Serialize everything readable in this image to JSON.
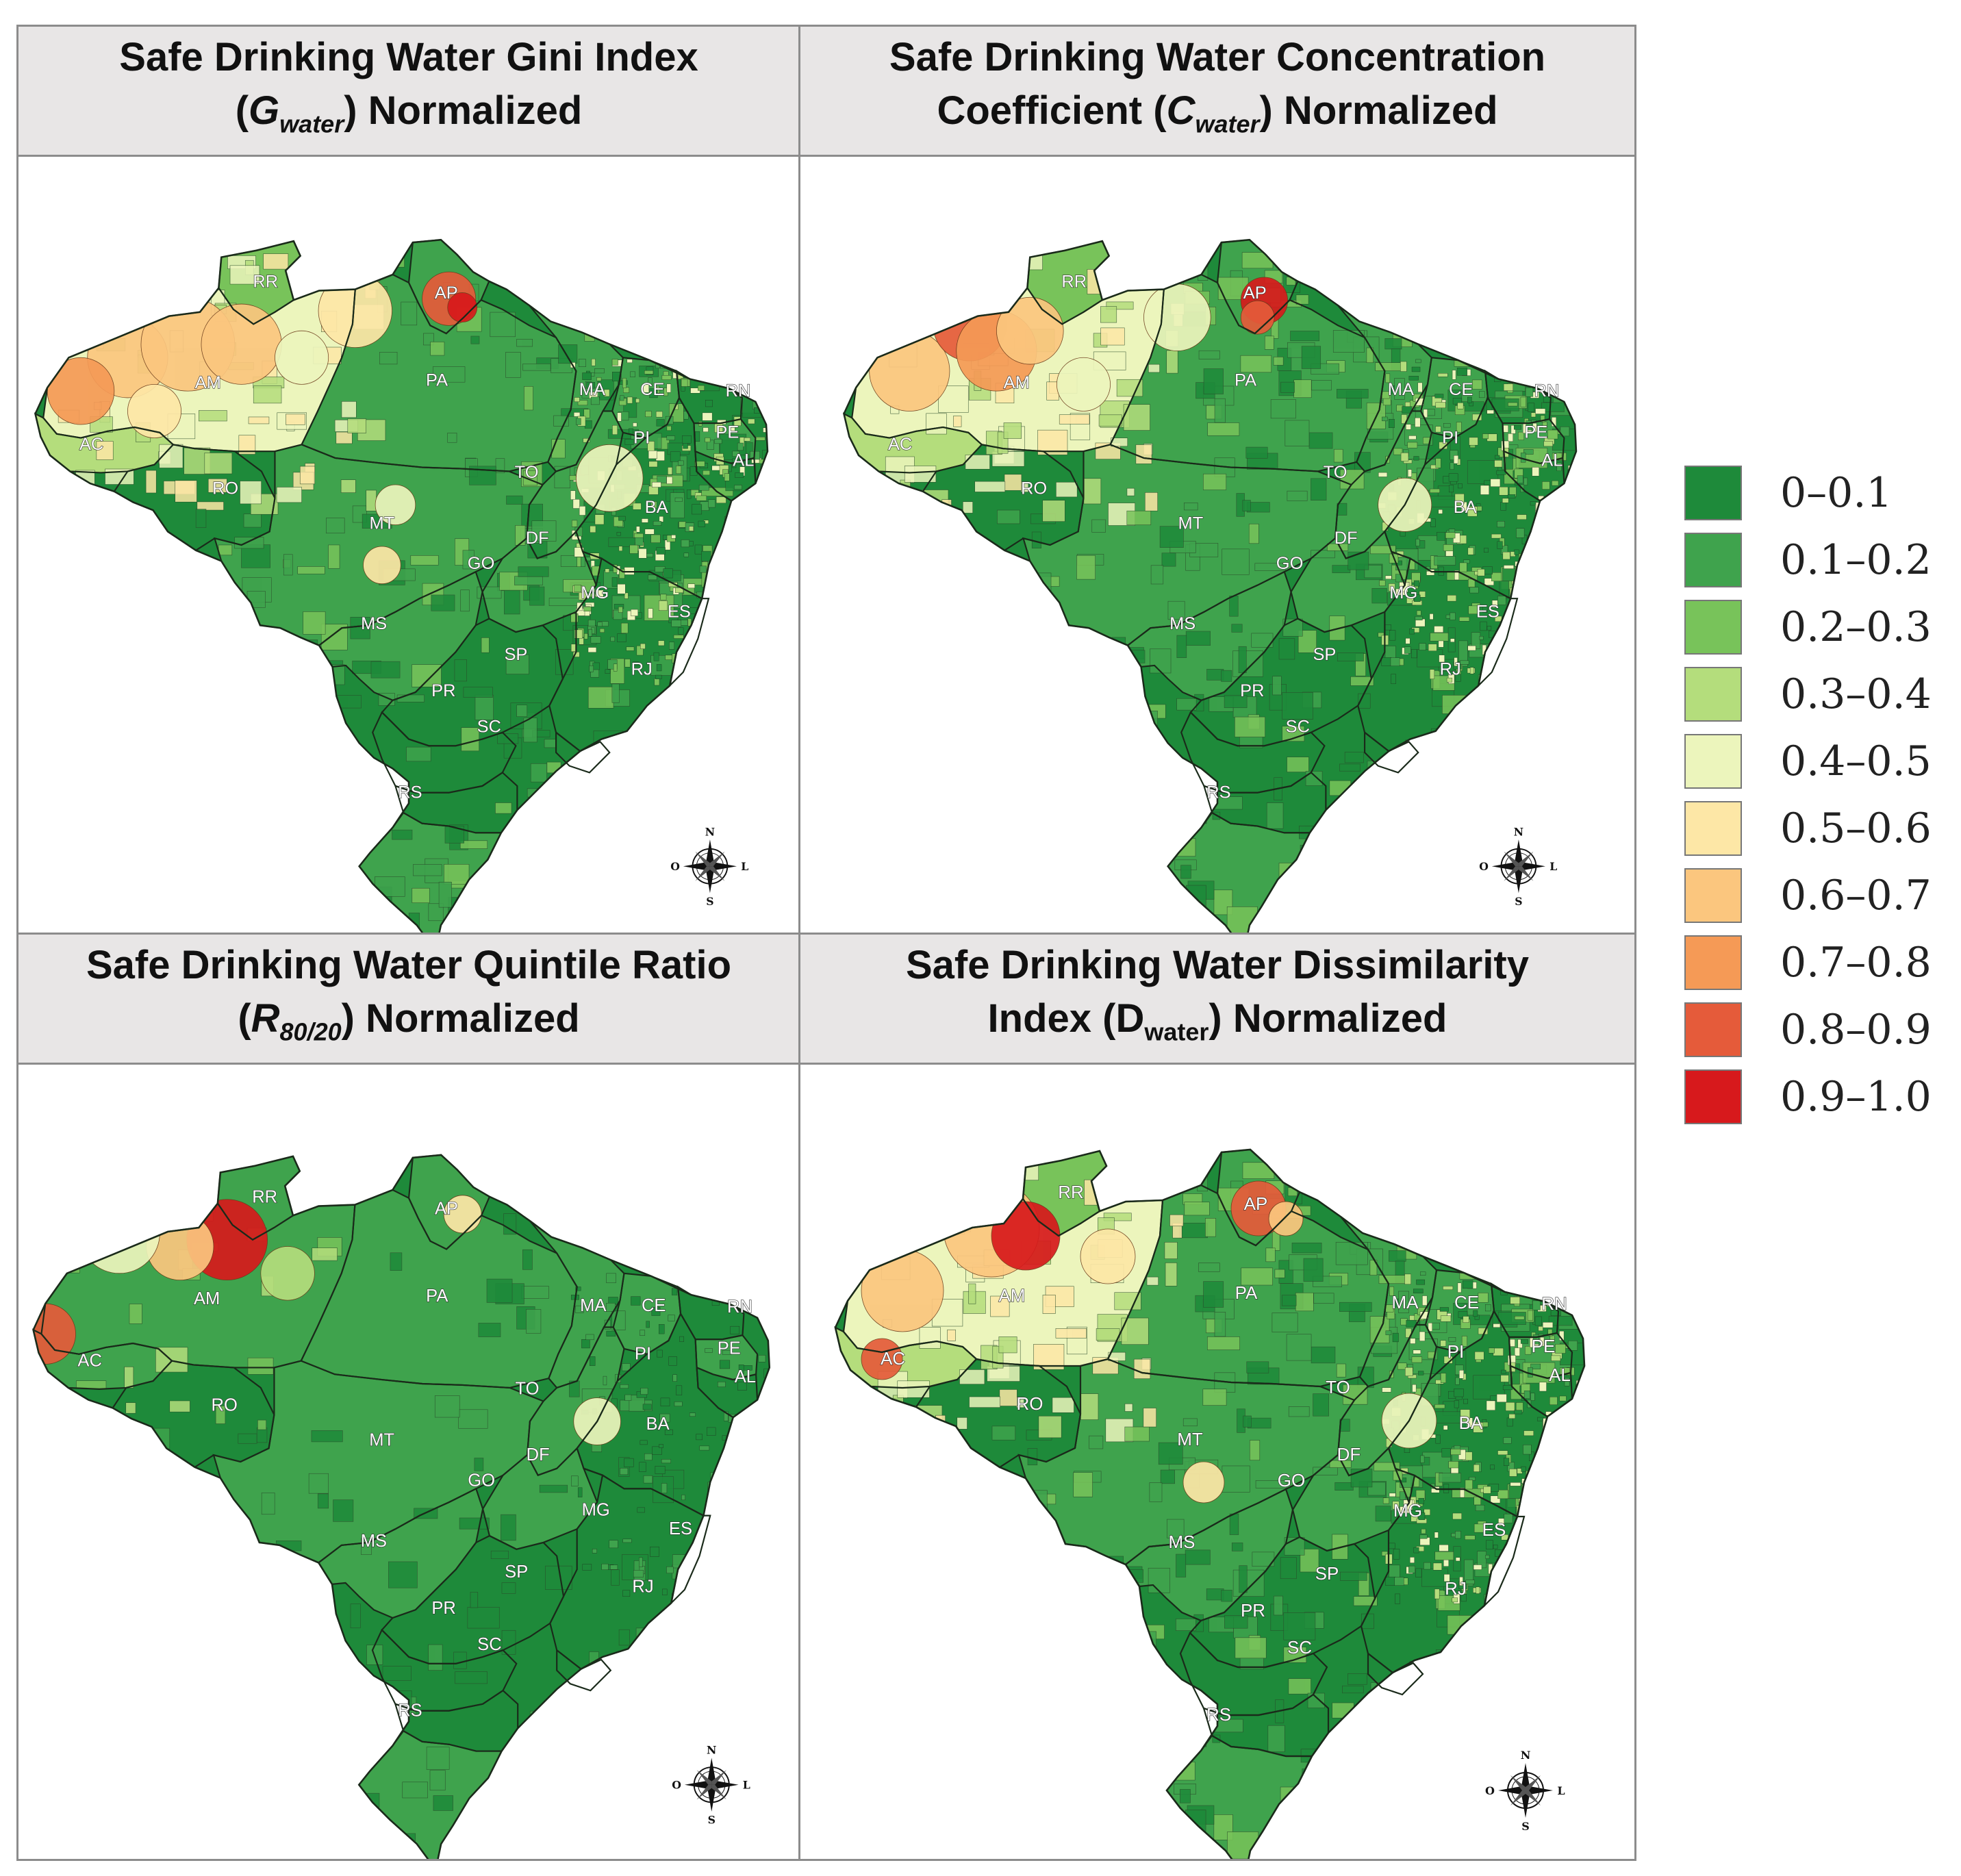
{
  "panels": [
    {
      "id": "gini",
      "title_line1": "Safe Drinking Water Gini Index",
      "title_pre": "(",
      "symbol": "G",
      "subscript": "water",
      "title_post": ") Normalized",
      "symbol_italic": true
    },
    {
      "id": "concentration",
      "title_line1": "Safe Drinking Water Concentration",
      "title_pre": "Coefficient (",
      "symbol": "C",
      "subscript": "water",
      "title_post": ") Normalized",
      "symbol_italic": true
    },
    {
      "id": "quintile",
      "title_line1": "Safe Drinking Water Quintile Ratio",
      "title_pre": "(",
      "symbol": "R",
      "subscript": "80/20",
      "title_post": ") Normalized",
      "symbol_italic": true
    },
    {
      "id": "dissimilarity",
      "title_line1": "Safe Drinking Water Dissimilarity",
      "title_pre": "Index (",
      "symbol": "D",
      "subscript": "water",
      "title_post": ") Normalized",
      "symbol_italic": false
    }
  ],
  "state_labels": [
    "RR",
    "AP",
    "AM",
    "PA",
    "MA",
    "CE",
    "RN",
    "PI",
    "PE",
    "AL",
    "AC",
    "RO",
    "TO",
    "BA",
    "MT",
    "DF",
    "GO",
    "MG",
    "ES",
    "MS",
    "SP",
    "RJ",
    "PR",
    "SC",
    "RS"
  ],
  "compass": {
    "north": "N",
    "south": "S",
    "east": "L",
    "west": "O"
  },
  "legend": [
    {
      "label": "0–0.1",
      "color": "#1e8a3a"
    },
    {
      "label": "0.1–0.2",
      "color": "#3fa34d"
    },
    {
      "label": "0.2–0.3",
      "color": "#78c35a"
    },
    {
      "label": "0.3–0.4",
      "color": "#b4dd7c"
    },
    {
      "label": "0.4–0.5",
      "color": "#ecf5bc"
    },
    {
      "label": "0.5–0.6",
      "color": "#fde7a6"
    },
    {
      "label": "0.6–0.7",
      "color": "#fbc67e"
    },
    {
      "label": "0.7–0.8",
      "color": "#f59a56"
    },
    {
      "label": "0.8–0.9",
      "color": "#e55b3a"
    },
    {
      "label": "0.9–1.0",
      "color": "#d7191c"
    }
  ]
}
